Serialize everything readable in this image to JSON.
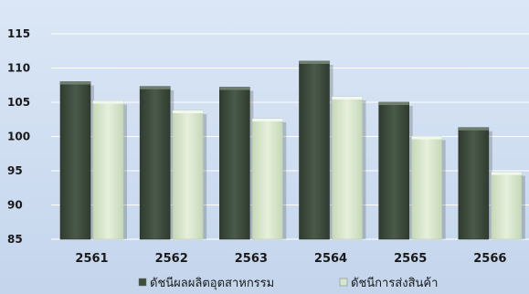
{
  "chart_data": {
    "type": "bar",
    "categories": [
      "2561",
      "2562",
      "2563",
      "2564",
      "2565",
      "2566"
    ],
    "series": [
      {
        "name": "ดัชนีผลผลิตอุตสาหกรรม",
        "values": [
          108,
          107.3,
          107.2,
          111,
          105,
          101.3
        ]
      },
      {
        "name": "ดัชนีการส่งสินค้า",
        "values": [
          105.2,
          103.8,
          102.6,
          105.8,
          100,
          94.8
        ]
      }
    ],
    "ylim": [
      85,
      115
    ],
    "yticks": [
      85,
      90,
      95,
      100,
      105,
      110,
      115
    ],
    "grid": true,
    "legend": "bottom",
    "colors": [
      "#3f4d3e",
      "#d7e6cc"
    ]
  }
}
